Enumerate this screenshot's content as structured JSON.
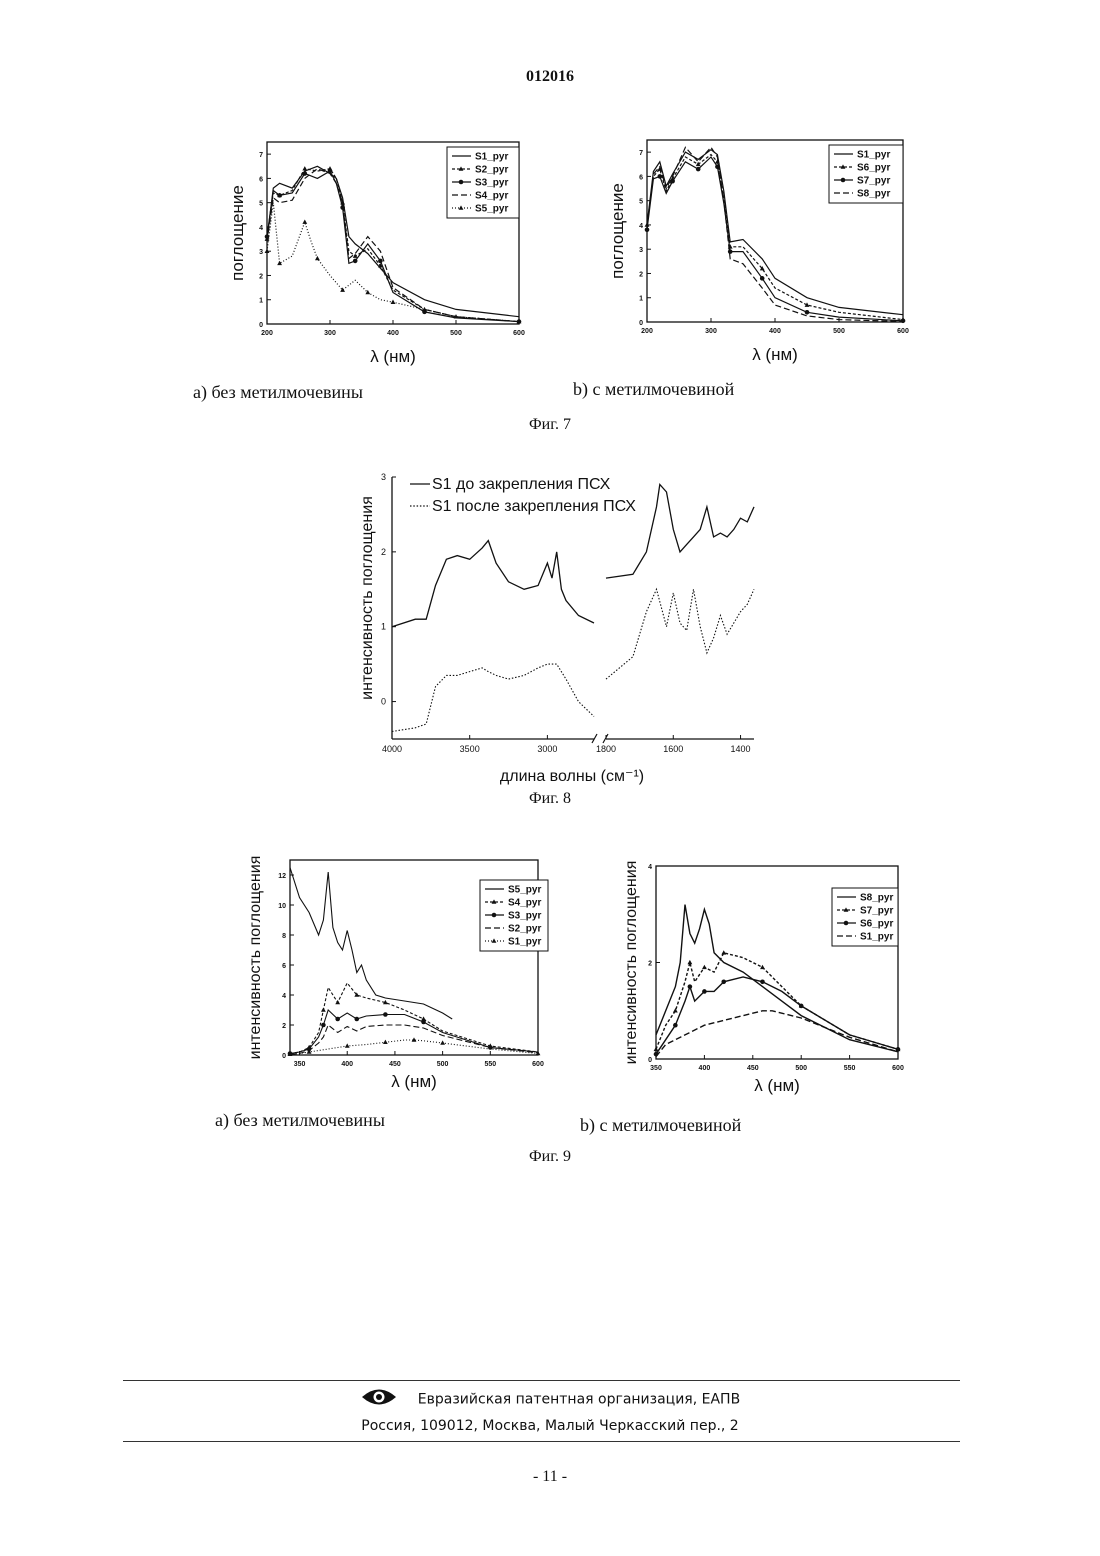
{
  "header": {
    "doc_number": "012016"
  },
  "fig7": {
    "caption": "Фиг. 7",
    "sub_a": "а) без метилмочевины",
    "sub_b": "b) с метилмочевиной"
  },
  "fig8": {
    "caption": "Фиг. 8"
  },
  "fig9": {
    "caption": "Фиг. 9",
    "sub_a": "а) без метилмочевины",
    "sub_b": "b) с метилмочевиной"
  },
  "footer": {
    "org": "Евразийская патентная организация, ЕАПВ",
    "address": "Россия, 109012, Москва, Малый Черкасский пер., 2",
    "page": "- 11 -",
    "logo_icon": "eye-logo-icon"
  },
  "chart_data": [
    {
      "id": "fig7a",
      "type": "line",
      "xlabel": "λ (нм)",
      "ylabel": "поглощение",
      "xlim": [
        200,
        600
      ],
      "ylim": [
        0,
        7.5
      ],
      "xticks": [
        200,
        300,
        400,
        500,
        600
      ],
      "yticks": [
        0,
        1,
        2,
        3,
        4,
        5,
        6,
        7
      ],
      "legend_position": "top-right",
      "series": [
        {
          "name": "S1_pyr",
          "x": [
            200,
            210,
            220,
            240,
            260,
            280,
            300,
            310,
            320,
            330,
            340,
            360,
            380,
            400,
            450,
            500,
            600
          ],
          "y": [
            3.5,
            5.6,
            5.8,
            5.6,
            6.3,
            6.5,
            6.2,
            6.0,
            5.2,
            3.6,
            3.3,
            2.9,
            2.3,
            1.7,
            1.0,
            0.6,
            0.3
          ]
        },
        {
          "name": "S2_pyr",
          "x": [
            200,
            210,
            220,
            240,
            260,
            280,
            300,
            310,
            320,
            330,
            340,
            360,
            380,
            400,
            450,
            500,
            600
          ],
          "y": [
            3.5,
            5.4,
            5.3,
            5.5,
            6.4,
            6.3,
            6.4,
            6.0,
            5.0,
            3.0,
            2.8,
            3.1,
            2.4,
            1.4,
            0.6,
            0.3,
            0.1
          ]
        },
        {
          "name": "S3_pyr",
          "x": [
            200,
            210,
            220,
            240,
            260,
            280,
            300,
            310,
            320,
            330,
            340,
            360,
            380,
            400,
            450,
            500,
            600
          ],
          "y": [
            3.6,
            5.5,
            5.3,
            5.4,
            6.2,
            6.0,
            6.3,
            5.8,
            4.8,
            2.5,
            2.6,
            3.3,
            2.6,
            1.3,
            0.5,
            0.25,
            0.1
          ]
        },
        {
          "name": "S4_pyr",
          "x": [
            200,
            210,
            220,
            240,
            260,
            280,
            300,
            310,
            320,
            330,
            340,
            360,
            380,
            400,
            450,
            500,
            600
          ],
          "y": [
            3.4,
            5.2,
            5.0,
            5.1,
            6.0,
            6.4,
            6.2,
            5.8,
            5.0,
            2.7,
            2.9,
            3.6,
            3.0,
            1.5,
            0.6,
            0.3,
            0.1
          ]
        },
        {
          "name": "S5_pyr",
          "x": [
            200,
            210,
            220,
            240,
            260,
            270,
            280,
            300,
            320,
            340,
            360,
            380,
            400,
            450,
            500,
            600
          ],
          "y": [
            3.0,
            5.0,
            2.5,
            2.8,
            4.2,
            3.4,
            2.7,
            2.0,
            1.4,
            1.8,
            1.3,
            1.0,
            0.9,
            0.6,
            0.3,
            0.1
          ]
        }
      ]
    },
    {
      "id": "fig7b",
      "type": "line",
      "xlabel": "λ (нм)",
      "ylabel": "поглощение",
      "xlim": [
        200,
        600
      ],
      "ylim": [
        0,
        7.5
      ],
      "xticks": [
        200,
        300,
        400,
        500,
        600
      ],
      "yticks": [
        0,
        1,
        2,
        3,
        4,
        5,
        6,
        7
      ],
      "legend_position": "top-right",
      "series": [
        {
          "name": "S1_pyr",
          "x": [
            200,
            210,
            220,
            230,
            240,
            260,
            280,
            300,
            310,
            320,
            330,
            350,
            380,
            400,
            450,
            500,
            600
          ],
          "y": [
            4.0,
            6.2,
            6.6,
            5.6,
            6.1,
            7.0,
            6.7,
            7.1,
            6.9,
            5.4,
            3.3,
            3.4,
            2.6,
            1.8,
            1.0,
            0.6,
            0.3
          ]
        },
        {
          "name": "S6_pyr",
          "x": [
            200,
            210,
            220,
            230,
            240,
            260,
            280,
            300,
            310,
            320,
            330,
            350,
            380,
            400,
            450,
            500,
            600
          ],
          "y": [
            4.0,
            6.0,
            6.3,
            5.4,
            5.9,
            6.8,
            6.5,
            6.9,
            6.6,
            5.1,
            3.1,
            3.1,
            2.2,
            1.4,
            0.7,
            0.4,
            0.1
          ]
        },
        {
          "name": "S7_pyr",
          "x": [
            200,
            210,
            220,
            230,
            240,
            260,
            280,
            300,
            310,
            320,
            330,
            350,
            380,
            400,
            450,
            500,
            600
          ],
          "y": [
            3.8,
            5.9,
            6.0,
            5.3,
            5.8,
            6.6,
            6.3,
            6.8,
            6.4,
            4.9,
            2.9,
            2.9,
            1.8,
            1.0,
            0.4,
            0.2,
            0.05
          ]
        },
        {
          "name": "S8_pyr",
          "x": [
            200,
            210,
            220,
            230,
            240,
            260,
            280,
            300,
            310,
            320,
            330,
            350,
            380,
            400,
            450,
            500,
            600
          ],
          "y": [
            3.9,
            6.1,
            6.4,
            5.5,
            6.0,
            7.2,
            6.6,
            7.2,
            6.8,
            5.0,
            2.6,
            2.4,
            1.4,
            0.7,
            0.25,
            0.1,
            0.02
          ]
        }
      ]
    },
    {
      "id": "fig8",
      "type": "line",
      "xlabel": "длина волны (см⁻¹)",
      "ylabel": "интенсивность поглощения",
      "xticks": [
        4000,
        3500,
        3000,
        1800,
        1600,
        1400
      ],
      "yticks": [
        0,
        1,
        2,
        3
      ],
      "legend_position": "top-left",
      "series": [
        {
          "name": "S1 до закрепления ПСХ",
          "segments": [
            {
              "x": [
                4000,
                3850,
                3780,
                3720,
                3650,
                3580,
                3500,
                3420,
                3380,
                3330,
                3250,
                3150,
                3060,
                3000,
                2970,
                2940,
                2910,
                2880,
                2800,
                2700
              ],
              "y": [
                1.0,
                1.1,
                1.1,
                1.55,
                1.9,
                1.95,
                1.9,
                2.05,
                2.15,
                1.85,
                1.6,
                1.5,
                1.55,
                1.85,
                1.65,
                2.0,
                1.5,
                1.35,
                1.15,
                1.05
              ]
            },
            {
              "x": [
                1800,
                1720,
                1680,
                1650,
                1640,
                1620,
                1600,
                1580,
                1560,
                1540,
                1520,
                1500,
                1480,
                1460,
                1440,
                1420,
                1400,
                1380,
                1360
              ],
              "y": [
                1.65,
                1.7,
                2.0,
                2.6,
                2.9,
                2.8,
                2.3,
                2.0,
                2.1,
                2.2,
                2.3,
                2.6,
                2.2,
                2.25,
                2.2,
                2.3,
                2.45,
                2.4,
                2.6
              ]
            }
          ]
        },
        {
          "name": "S1 после закрепления ПСХ",
          "segments": [
            {
              "x": [
                4000,
                3850,
                3780,
                3720,
                3650,
                3580,
                3500,
                3420,
                3380,
                3330,
                3250,
                3150,
                3060,
                3000,
                2940,
                2880,
                2800,
                2700
              ],
              "y": [
                -0.4,
                -0.35,
                -0.3,
                0.2,
                0.35,
                0.35,
                0.4,
                0.45,
                0.4,
                0.35,
                0.3,
                0.35,
                0.45,
                0.5,
                0.5,
                0.3,
                0.0,
                -0.2
              ]
            },
            {
              "x": [
                1800,
                1720,
                1680,
                1650,
                1620,
                1600,
                1580,
                1560,
                1540,
                1520,
                1500,
                1480,
                1460,
                1440,
                1420,
                1400,
                1380,
                1360
              ],
              "y": [
                0.3,
                0.6,
                1.2,
                1.5,
                1.0,
                1.45,
                1.05,
                0.95,
                1.5,
                1.0,
                0.65,
                0.85,
                1.15,
                0.9,
                1.05,
                1.2,
                1.3,
                1.5
              ]
            }
          ]
        }
      ]
    },
    {
      "id": "fig9a",
      "type": "line",
      "xlabel": "λ (нм)",
      "ylabel": "интенсивность поглощения",
      "xlim": [
        340,
        600
      ],
      "ylim": [
        0,
        13
      ],
      "xticks": [
        350,
        400,
        450,
        500,
        550,
        600
      ],
      "yticks": [
        0,
        2,
        4,
        6,
        8,
        10,
        12
      ],
      "legend_position": "top-right",
      "series": [
        {
          "name": "S5_pyr",
          "x": [
            340,
            350,
            360,
            370,
            375,
            380,
            385,
            390,
            395,
            400,
            405,
            410,
            415,
            420,
            430,
            440,
            460,
            480,
            500,
            510
          ],
          "y": [
            12.5,
            10.5,
            9.5,
            8.0,
            9.0,
            12.2,
            8.5,
            7.5,
            7.0,
            8.3,
            7.0,
            5.5,
            6.0,
            5.0,
            4.0,
            3.8,
            3.6,
            3.4,
            2.8,
            2.4
          ]
        },
        {
          "name": "S4_pyr",
          "x": [
            340,
            350,
            360,
            370,
            375,
            380,
            390,
            400,
            410,
            420,
            440,
            460,
            480,
            500,
            550,
            600
          ],
          "y": [
            0.1,
            0.2,
            0.5,
            1.5,
            3.0,
            4.5,
            3.5,
            4.8,
            4.0,
            3.8,
            3.5,
            3.0,
            2.4,
            1.6,
            0.6,
            0.2
          ]
        },
        {
          "name": "S3_pyr",
          "x": [
            340,
            350,
            360,
            370,
            375,
            380,
            390,
            400,
            410,
            420,
            440,
            460,
            480,
            500,
            550,
            600
          ],
          "y": [
            0.1,
            0.2,
            0.4,
            1.2,
            2.0,
            3.0,
            2.4,
            2.8,
            2.4,
            2.6,
            2.7,
            2.7,
            2.2,
            1.5,
            0.5,
            0.2
          ]
        },
        {
          "name": "S2_pyr",
          "x": [
            340,
            350,
            360,
            370,
            375,
            380,
            390,
            400,
            410,
            420,
            440,
            460,
            480,
            500,
            550,
            600
          ],
          "y": [
            0.05,
            0.1,
            0.3,
            0.8,
            1.2,
            2.0,
            1.5,
            1.9,
            1.6,
            1.9,
            2.0,
            2.0,
            1.8,
            1.3,
            0.5,
            0.15
          ]
        },
        {
          "name": "S1_pyr",
          "x": [
            340,
            350,
            360,
            380,
            400,
            420,
            440,
            460,
            470,
            480,
            500,
            550,
            600
          ],
          "y": [
            0.05,
            0.1,
            0.2,
            0.4,
            0.6,
            0.7,
            0.85,
            1.0,
            1.0,
            0.95,
            0.8,
            0.4,
            0.1
          ]
        }
      ]
    },
    {
      "id": "fig9b",
      "type": "line",
      "xlabel": "λ (нм)",
      "ylabel": "интенсивность поглощения",
      "xlim": [
        350,
        600
      ],
      "ylim": [
        0,
        4
      ],
      "xticks": [
        350,
        400,
        450,
        500,
        550,
        600
      ],
      "yticks": [
        0,
        2,
        4
      ],
      "legend_position": "top-right",
      "series": [
        {
          "name": "S8_pyr",
          "x": [
            350,
            360,
            370,
            375,
            380,
            385,
            390,
            395,
            400,
            405,
            410,
            420,
            440,
            460,
            480,
            500,
            550,
            600
          ],
          "y": [
            0.5,
            1.0,
            1.5,
            2.0,
            3.2,
            2.6,
            2.4,
            2.7,
            3.1,
            2.8,
            2.2,
            2.0,
            1.8,
            1.5,
            1.2,
            0.9,
            0.4,
            0.15
          ]
        },
        {
          "name": "S7_pyr",
          "x": [
            350,
            360,
            370,
            380,
            385,
            390,
            400,
            410,
            420,
            440,
            460,
            480,
            500,
            550,
            600
          ],
          "y": [
            0.2,
            0.7,
            1.0,
            1.6,
            2.0,
            1.6,
            1.9,
            1.8,
            2.2,
            2.1,
            1.9,
            1.5,
            1.1,
            0.5,
            0.2
          ]
        },
        {
          "name": "S6_pyr",
          "x": [
            350,
            360,
            370,
            380,
            385,
            390,
            400,
            410,
            420,
            440,
            460,
            480,
            500,
            550,
            600
          ],
          "y": [
            0.1,
            0.4,
            0.7,
            1.2,
            1.5,
            1.2,
            1.4,
            1.4,
            1.6,
            1.7,
            1.6,
            1.4,
            1.1,
            0.5,
            0.2
          ]
        },
        {
          "name": "S1_pyr",
          "x": [
            350,
            360,
            380,
            400,
            420,
            440,
            460,
            470,
            480,
            500,
            550,
            600
          ],
          "y": [
            0.05,
            0.3,
            0.5,
            0.7,
            0.8,
            0.9,
            1.0,
            1.0,
            0.95,
            0.85,
            0.45,
            0.15
          ]
        }
      ]
    }
  ]
}
